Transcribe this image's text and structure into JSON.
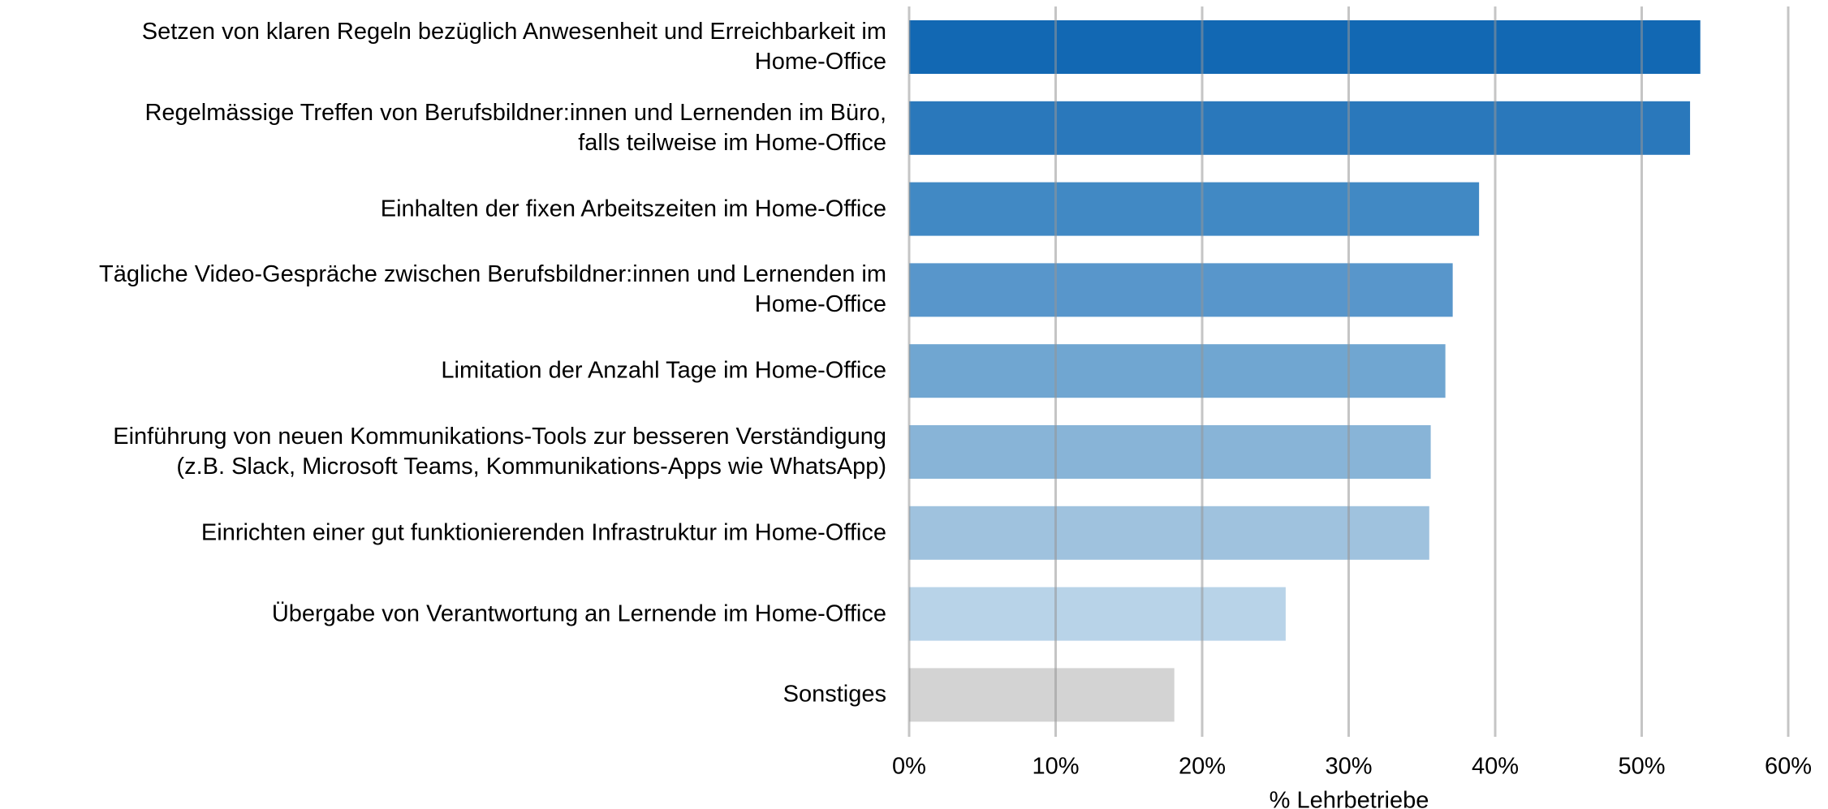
{
  "chart_data": {
    "type": "hbar",
    "categories": [
      "Setzen von klaren Regeln bezüglich Anwesenheit und Erreichbarkeit im\nHome-Office",
      "Regelmässige Treffen von Berufsbildner:innen und Lernenden im Büro,\nfalls teilweise im Home-Office",
      "Einhalten der fixen Arbeitszeiten im Home-Office",
      "Tägliche Video-Gespräche zwischen Berufsbildner:innen und Lernenden im\nHome-Office",
      "Limitation der Anzahl Tage im Home-Office",
      "Einführung von neuen Kommunikations-Tools zur besseren Verständigung\n(z.B. Slack, Microsoft Teams, Kommunikations-Apps wie WhatsApp)",
      "Einrichten einer gut funktionierenden Infrastruktur im Home-Office",
      "Übergabe von Verantwortung an Lernende im Home-Office",
      "Sonstiges"
    ],
    "values": [
      54.0,
      53.3,
      38.9,
      37.1,
      36.6,
      35.6,
      35.5,
      25.7,
      18.1
    ],
    "colors": [
      "#1268b3",
      "#2a78bb",
      "#4189c4",
      "#5896cb",
      "#70a6d1",
      "#88b4d7",
      "#9fc2de",
      "#b8d3e8",
      "#d3d3d3"
    ],
    "xlabel": "% Lehrbetriebe",
    "xlim": [
      0,
      60
    ],
    "xticks": [
      {
        "value": 0,
        "label": "0%"
      },
      {
        "value": 10,
        "label": "10%"
      },
      {
        "value": 20,
        "label": "20%"
      },
      {
        "value": 30,
        "label": "30%"
      },
      {
        "value": 40,
        "label": "40%"
      },
      {
        "value": 50,
        "label": "50%"
      },
      {
        "value": 60,
        "label": "60%"
      }
    ],
    "grid": true
  }
}
